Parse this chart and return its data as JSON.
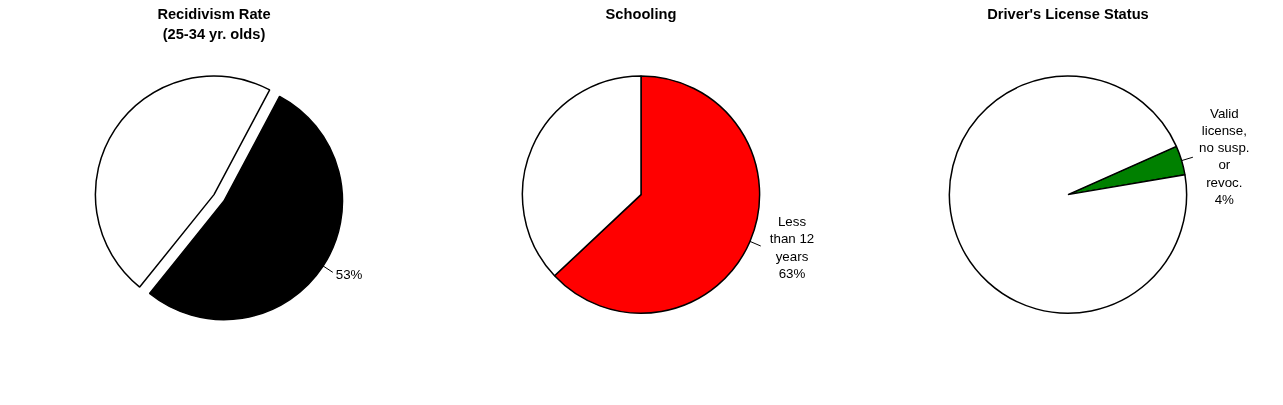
{
  "chart_data": [
    {
      "type": "pie",
      "title": "Recidivism Rate\n(25-34 yr. olds)",
      "categories": [
        null,
        null
      ],
      "values": [
        53,
        47
      ],
      "colors": [
        "#000000",
        "#ffffff"
      ],
      "value_labels": [
        "53%",
        null
      ]
    },
    {
      "type": "pie",
      "title": "Schooling",
      "categories": [
        "Less than 12 years",
        null
      ],
      "values": [
        63,
        37
      ],
      "colors": [
        "#ff0000",
        "#ffffff"
      ],
      "value_labels": [
        "63%",
        null
      ]
    },
    {
      "type": "pie",
      "title": "Driver's License Status",
      "categories": [
        "Valid license, no susp. or revoc.",
        null
      ],
      "values": [
        4,
        96
      ],
      "colors": [
        "#008000",
        "#ffffff"
      ],
      "value_labels": [
        "4%",
        null
      ]
    }
  ]
}
